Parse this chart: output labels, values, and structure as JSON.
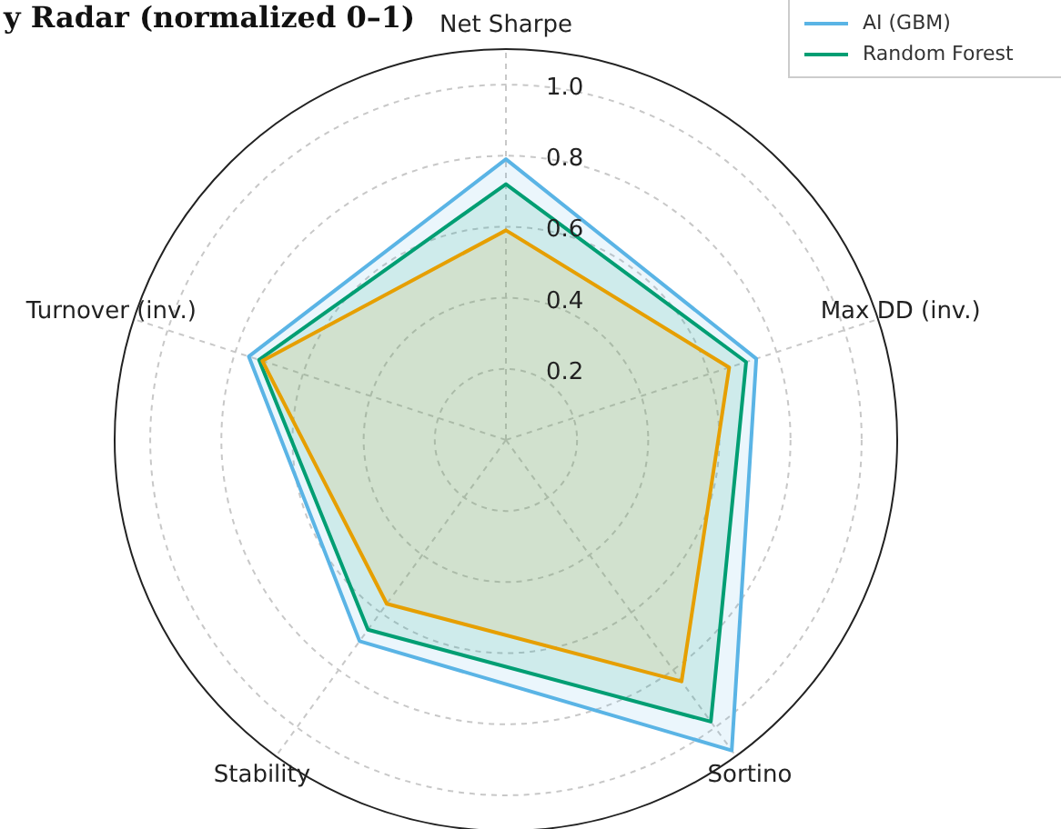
{
  "chart_data": {
    "type": "radar",
    "title": "y Radar (normalized 0–1)",
    "categories": [
      "Net Sharpe",
      "Max DD (inv.)",
      "Sortino",
      "Stability",
      "Turnover (inv.)"
    ],
    "series": [
      {
        "name": "AI (GBM)",
        "color": "#5ab4e5",
        "values": [
          0.79,
          0.74,
          1.08,
          0.7,
          0.76
        ]
      },
      {
        "name": "Random Forest",
        "color": "#009e73",
        "values": [
          0.72,
          0.71,
          0.98,
          0.66,
          0.73
        ]
      },
      {
        "color": "#e69f00",
        "values": [
          0.59,
          0.66,
          0.84,
          0.57,
          0.72
        ]
      }
    ],
    "ylim": [
      0,
      1.1
    ],
    "yticks": [
      0.2,
      0.4,
      0.6,
      0.8,
      {
        "value": 1,
        "label": "1.0"
      }
    ],
    "grid": true,
    "legend": "top right"
  }
}
